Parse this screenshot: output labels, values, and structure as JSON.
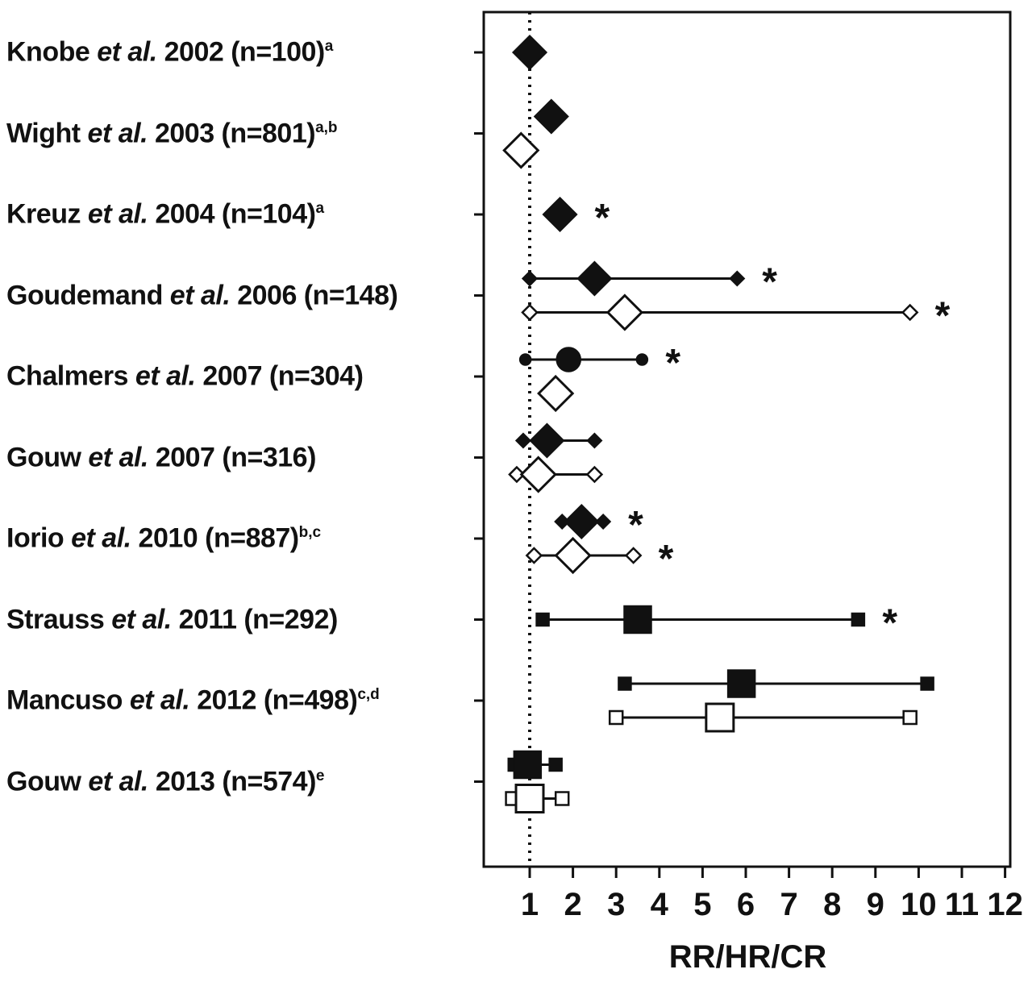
{
  "figure": {
    "xlabel": "RR/HR/CR"
  },
  "chart_data": {
    "type": "forest-plot",
    "title": "",
    "xlabel": "RR/HR/CR",
    "x_ticks": [
      1,
      2,
      3,
      4,
      5,
      6,
      7,
      8,
      9,
      10,
      11,
      12
    ],
    "reference_line": 1,
    "xlim": [
      0.0,
      12.2
    ],
    "grid": false,
    "legend": "none",
    "colors": {
      "filled": "#111111",
      "open": "#ffffff",
      "stroke": "#111111"
    },
    "studies": [
      {
        "label": {
          "pre": "Knobe ",
          "italic": "et al.",
          "post": " 2002 (n=100)",
          "sup": "a"
        },
        "rows": [
          {
            "series": "filled",
            "marker": "diamond",
            "center": 1.0,
            "low": null,
            "high": null,
            "significant": false
          }
        ]
      },
      {
        "label": {
          "pre": "Wight ",
          "italic": "et al.",
          "post": " 2003 (n=801)",
          "sup": "a,b"
        },
        "rows": [
          {
            "series": "filled",
            "marker": "diamond",
            "center": 1.5,
            "low": null,
            "high": null,
            "significant": false
          },
          {
            "series": "open",
            "marker": "diamond",
            "center": 0.8,
            "low": null,
            "high": null,
            "significant": false
          }
        ]
      },
      {
        "label": {
          "pre": "Kreuz ",
          "italic": "et al.",
          "post": " 2004 (n=104)",
          "sup": "a"
        },
        "rows": [
          {
            "series": "filled",
            "marker": "diamond",
            "center": 1.7,
            "low": null,
            "high": null,
            "significant": true
          }
        ]
      },
      {
        "label": {
          "pre": "Goudemand ",
          "italic": "et al.",
          "post": " 2006 (n=148)",
          "sup": ""
        },
        "rows": [
          {
            "series": "filled",
            "marker": "diamond",
            "center": 2.5,
            "low": 1.0,
            "high": 5.8,
            "significant": true
          },
          {
            "series": "open",
            "marker": "diamond",
            "center": 3.2,
            "low": 1.0,
            "high": 9.8,
            "significant": true
          }
        ]
      },
      {
        "label": {
          "pre": "Chalmers ",
          "italic": "et al.",
          "post": " 2007 (n=304)",
          "sup": ""
        },
        "rows": [
          {
            "series": "filled",
            "marker": "circle",
            "center": 1.9,
            "low": 0.9,
            "high": 3.6,
            "significant": true
          },
          {
            "series": "open",
            "marker": "diamond",
            "center": 1.6,
            "low": null,
            "high": null,
            "significant": false
          }
        ]
      },
      {
        "label": {
          "pre": "Gouw ",
          "italic": "et al.",
          "post": " 2007 (n=316)",
          "sup": ""
        },
        "rows": [
          {
            "series": "filled",
            "marker": "diamond",
            "center": 1.4,
            "low": 0.85,
            "high": 2.5,
            "significant": false
          },
          {
            "series": "open",
            "marker": "diamond",
            "center": 1.2,
            "low": 0.7,
            "high": 2.5,
            "significant": false
          }
        ]
      },
      {
        "label": {
          "pre": "Iorio ",
          "italic": "et al.",
          "post": " 2010 (n=887)",
          "sup": "b,c"
        },
        "rows": [
          {
            "series": "filled",
            "marker": "diamond",
            "center": 2.2,
            "low": 1.75,
            "high": 2.7,
            "significant": true
          },
          {
            "series": "open",
            "marker": "diamond",
            "center": 2.0,
            "low": 1.1,
            "high": 3.4,
            "significant": true
          }
        ]
      },
      {
        "label": {
          "pre": "Strauss ",
          "italic": "et al.",
          "post": " 2011 (n=292)",
          "sup": ""
        },
        "rows": [
          {
            "series": "filled",
            "marker": "square",
            "center": 3.5,
            "low": 1.3,
            "high": 8.6,
            "significant": true
          }
        ]
      },
      {
        "label": {
          "pre": "Mancuso ",
          "italic": "et al.",
          "post": " 2012 (n=498)",
          "sup": "c,d"
        },
        "rows": [
          {
            "series": "filled",
            "marker": "square",
            "center": 5.9,
            "low": 3.2,
            "high": 10.2,
            "significant": false
          },
          {
            "series": "open",
            "marker": "square",
            "center": 5.4,
            "low": 3.0,
            "high": 9.8,
            "significant": false
          }
        ]
      },
      {
        "label": {
          "pre": "Gouw ",
          "italic": "et al.",
          "post": " 2013 (n=574)",
          "sup": "e"
        },
        "rows": [
          {
            "series": "filled",
            "marker": "square",
            "center": 0.95,
            "low": 0.65,
            "high": 1.6,
            "significant": false
          },
          {
            "series": "open",
            "marker": "square",
            "center": 1.0,
            "low": 0.6,
            "high": 1.75,
            "significant": false
          }
        ]
      }
    ]
  }
}
